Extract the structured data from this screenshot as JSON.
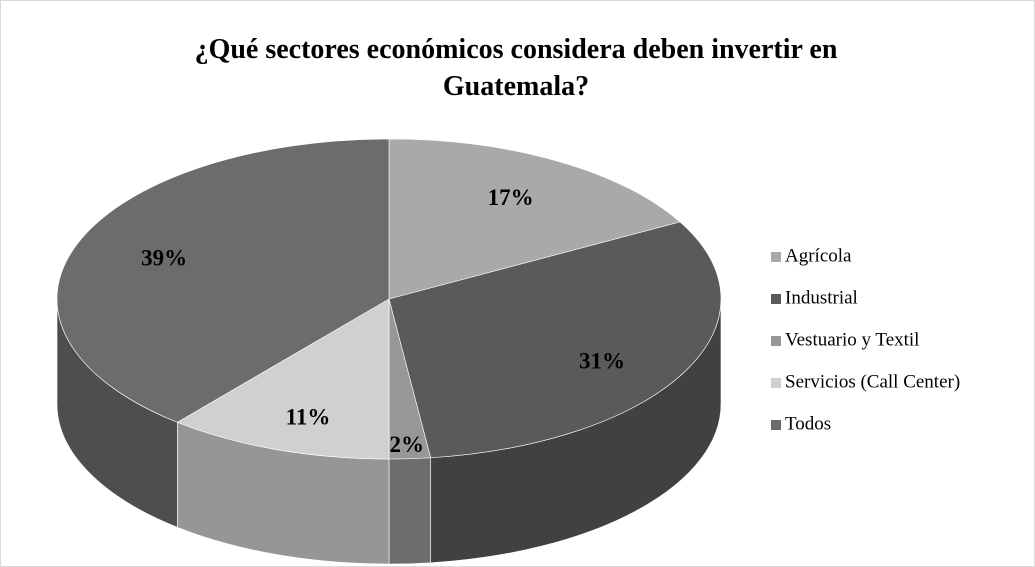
{
  "chart_data": {
    "type": "pie",
    "title": "¿Qué sectores económicos considera deben invertir en Guatemala?",
    "categories": [
      "Agrícola",
      "Industrial",
      "Vestuario y Textil",
      "Servicios (Call Center)",
      "Todos"
    ],
    "values": [
      17,
      31,
      2,
      11,
      39
    ],
    "value_labels": [
      "17%",
      "31%",
      "2%",
      "11%",
      "39%"
    ],
    "colors": [
      "#a9a9a9",
      "#5a5a5a",
      "#979797",
      "#d0d0d0",
      "#6c6c6c"
    ],
    "legend": "right"
  }
}
